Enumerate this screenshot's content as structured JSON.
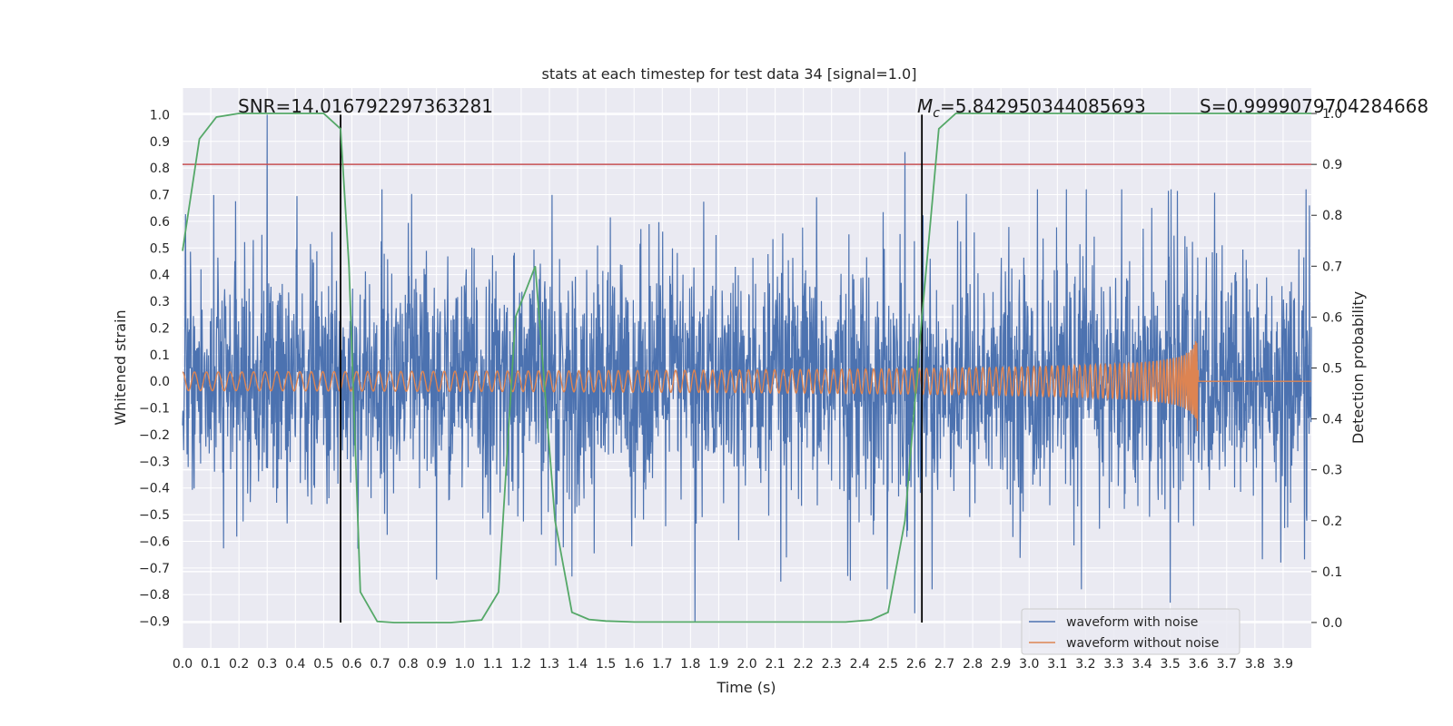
{
  "chart_data": {
    "type": "line",
    "title": "stats at each timestep for test data 34 [signal=1.0]",
    "xlabel": "Time (s)",
    "ylabel": "Whitened strain",
    "y2label": "Detection probability",
    "xlim": [
      0.0,
      4.0
    ],
    "ylim": [
      -1.0,
      1.1
    ],
    "y2lim": [
      -0.05,
      1.05
    ],
    "x_ticks": [
      "0.0",
      "0.1",
      "0.2",
      "0.3",
      "0.4",
      "0.5",
      "0.6",
      "0.7",
      "0.8",
      "0.9",
      "1.0",
      "1.1",
      "1.2",
      "1.3",
      "1.4",
      "1.5",
      "1.6",
      "1.7",
      "1.8",
      "1.9",
      "2.0",
      "2.1",
      "2.2",
      "2.3",
      "2.4",
      "2.5",
      "2.6",
      "2.7",
      "2.8",
      "2.9",
      "3.0",
      "3.1",
      "3.2",
      "3.3",
      "3.4",
      "3.5",
      "3.6",
      "3.7",
      "3.8",
      "3.9"
    ],
    "y_ticks": [
      "1.0",
      "0.9",
      "0.8",
      "0.7",
      "0.6",
      "0.5",
      "0.4",
      "0.3",
      "0.2",
      "0.1",
      "0.0",
      "−0.1",
      "−0.2",
      "−0.3",
      "−0.4",
      "−0.5",
      "−0.6",
      "−0.7",
      "−0.8",
      "−0.9"
    ],
    "y2_ticks": [
      "1.0",
      "0.9",
      "0.8",
      "0.7",
      "0.6",
      "0.5",
      "0.4",
      "0.3",
      "0.2",
      "0.1",
      "0.0"
    ],
    "grid": true,
    "legend_position": "bottom-right",
    "annotations": {
      "snr": "SNR=14.016792297363281",
      "mc_symbol": "M",
      "mc_sub": "c",
      "mc_value": "=5.842950344085693",
      "s": "S=0.9999079704284668"
    },
    "threshold_y2": 0.9,
    "vertical_lines_x": [
      0.56,
      2.62
    ],
    "series": [
      {
        "name": "waveform with noise",
        "color": "#4c72b0",
        "kind": "noise",
        "amplitude_peaks": [
          1.0,
          0.94,
          -0.9,
          0.86,
          -0.87,
          -0.83
        ]
      },
      {
        "name": "waveform without noise",
        "color": "#dd8452",
        "kind": "chirp",
        "merger_time": 3.6,
        "peak_amplitude": 0.43
      },
      {
        "name": "detection probability",
        "color": "#55a868",
        "axis": "right",
        "x": [
          0.0,
          0.06,
          0.12,
          0.2,
          0.3,
          0.4,
          0.5,
          0.56,
          0.59,
          0.63,
          0.69,
          0.75,
          0.85,
          0.95,
          1.0,
          1.06,
          1.12,
          1.18,
          1.25,
          1.32,
          1.38,
          1.44,
          1.5,
          1.6,
          1.8,
          2.0,
          2.2,
          2.35,
          2.44,
          2.5,
          2.56,
          2.62,
          2.68,
          2.74,
          2.8,
          3.0,
          3.5,
          4.0
        ],
        "y": [
          0.73,
          0.95,
          0.993,
          1.0,
          1.0,
          1.0,
          1.0,
          0.97,
          0.7,
          0.06,
          0.002,
          0.0,
          0.0,
          0.0,
          0.002,
          0.005,
          0.06,
          0.6,
          0.7,
          0.2,
          0.02,
          0.006,
          0.003,
          0.001,
          0.001,
          0.001,
          0.001,
          0.001,
          0.005,
          0.02,
          0.2,
          0.6,
          0.97,
          1.0,
          1.0,
          1.0,
          1.0,
          1.0
        ]
      },
      {
        "name": "threshold",
        "color": "#c44e52",
        "axis": "right",
        "value": 0.9
      }
    ]
  }
}
